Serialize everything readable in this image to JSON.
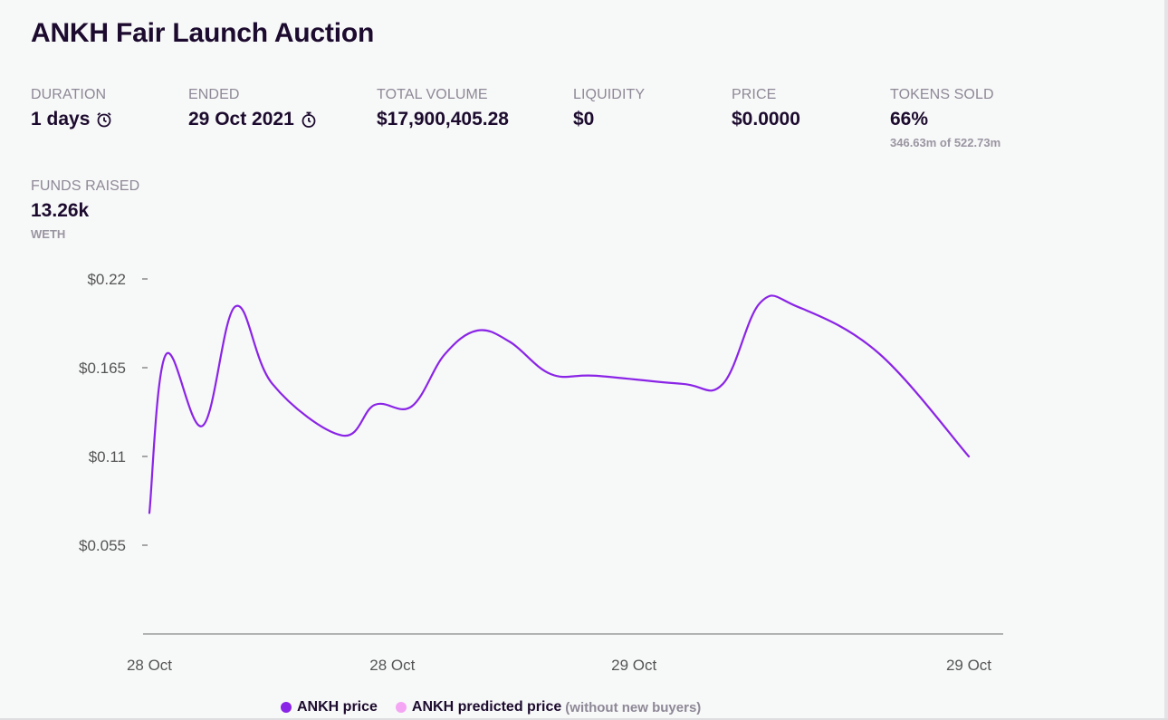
{
  "page": {
    "title": "ANKH Fair Launch Auction"
  },
  "stats": {
    "duration": {
      "label": "DURATION",
      "value": "1 days",
      "icon": "alarm-clock-icon"
    },
    "ended": {
      "label": "ENDED",
      "value": "29 Oct 2021",
      "icon": "stopwatch-icon"
    },
    "total_volume": {
      "label": "TOTAL VOLUME",
      "value": "$17,900,405.28"
    },
    "liquidity": {
      "label": "LIQUIDITY",
      "value": "$0"
    },
    "price": {
      "label": "PRICE",
      "value": "$0.0000"
    },
    "tokens_sold": {
      "label": "TOKENS SOLD",
      "value": "66%",
      "sub": "346.63m of 522.73m"
    },
    "funds_raised": {
      "label": "FUNDS RAISED",
      "value": "13.26k",
      "sub": "WETH"
    }
  },
  "colors": {
    "series": "#8a24e6",
    "predicted": "#f4a6f4",
    "axis": "#888888"
  },
  "chart_data": {
    "type": "line",
    "y_ticks": [
      {
        "value": 0.22,
        "label": "$0.22"
      },
      {
        "value": 0.165,
        "label": "$0.165"
      },
      {
        "value": 0.11,
        "label": "$0.11"
      },
      {
        "value": 0.055,
        "label": "$0.055"
      }
    ],
    "x_ticks": [
      {
        "value": 0,
        "label": "28 Oct"
      },
      {
        "value": 0.2965,
        "label": "28 Oct"
      },
      {
        "value": 0.5914,
        "label": "29 Oct"
      },
      {
        "value": 1.0,
        "label": "29 Oct"
      }
    ],
    "ylim": [
      0,
      0.22
    ],
    "xlim": [
      0,
      1
    ],
    "series": [
      {
        "name": "ANKH price",
        "x": [
          0,
          0.02,
          0.065,
          0.105,
          0.15,
          0.235,
          0.275,
          0.32,
          0.36,
          0.4,
          0.44,
          0.49,
          0.545,
          0.65,
          0.7,
          0.745,
          0.79,
          0.89,
          1.0
        ],
        "values": [
          0.075,
          0.173,
          0.129,
          0.203,
          0.155,
          0.123,
          0.142,
          0.141,
          0.173,
          0.188,
          0.181,
          0.161,
          0.16,
          0.155,
          0.155,
          0.205,
          0.203,
          0.174,
          0.11
        ]
      }
    ],
    "legend": [
      {
        "label": "ANKH price",
        "color": "#8a24e6"
      },
      {
        "label": "ANKH predicted price",
        "note": "(without new buyers)",
        "color": "#f4a6f4"
      }
    ],
    "legend_position": "bottom-center",
    "grid": false
  }
}
